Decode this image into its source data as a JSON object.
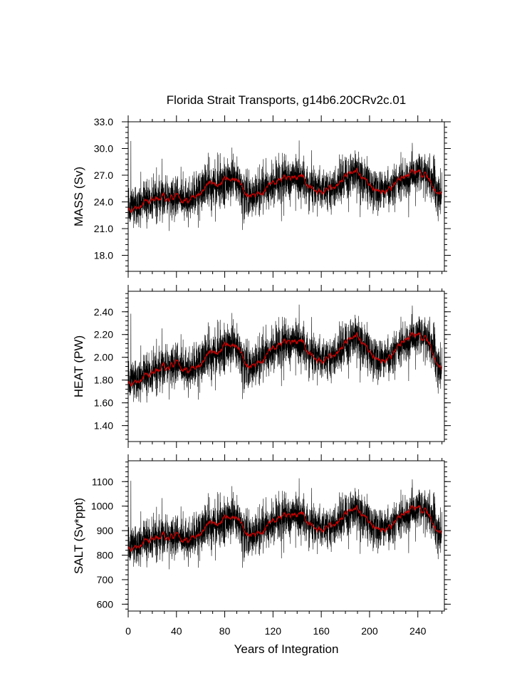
{
  "chart_data": {
    "type": "line",
    "title": "Florida Strait Transports, g14b6.20CRv2c.01",
    "xlabel": "Years of Integration",
    "xlim": [
      0,
      262
    ],
    "xticks": [
      0,
      40,
      80,
      120,
      160,
      200,
      240
    ],
    "xtick_labels": [
      "0",
      "40",
      "80",
      "120",
      "160",
      "200",
      "240"
    ],
    "series_colors": {
      "monthly": "#000000",
      "smoothed": "#cc0000"
    },
    "panels": [
      {
        "ylabel": "MASS (Sv)",
        "ylim": [
          16.2,
          33.0
        ],
        "yticks": [
          18.0,
          21.0,
          24.0,
          27.0,
          30.0,
          33.0
        ],
        "ytick_labels": [
          "18.0",
          "21.0",
          "24.0",
          "27.0",
          "30.0",
          "33.0"
        ],
        "minor_step": 0.6,
        "noise": 1.2,
        "trend_years": [
          0,
          10,
          20,
          30,
          40,
          50,
          60,
          70,
          80,
          87,
          95,
          100,
          110,
          120,
          130,
          140,
          150,
          160,
          170,
          180,
          190,
          200,
          210,
          220,
          230,
          240,
          250,
          260
        ],
        "trend_values": [
          23.2,
          23.8,
          24.2,
          24.3,
          24.6,
          24.0,
          25.2,
          25.9,
          26.2,
          26.7,
          25.5,
          24.5,
          25.2,
          26.0,
          26.5,
          26.9,
          25.9,
          25.2,
          25.8,
          26.8,
          27.3,
          25.8,
          25.2,
          25.9,
          26.8,
          27.4,
          26.6,
          24.5
        ]
      },
      {
        "ylabel": "HEAT (PW)",
        "ylim": [
          1.26,
          2.58
        ],
        "yticks": [
          1.4,
          1.6,
          1.8,
          2.0,
          2.2,
          2.4
        ],
        "ytick_labels": [
          "1.40",
          "1.60",
          "1.80",
          "2.00",
          "2.20",
          "2.40"
        ],
        "minor_step": 0.04,
        "noise": 0.095,
        "trend_years": [
          0,
          10,
          20,
          30,
          40,
          50,
          60,
          70,
          80,
          87,
          95,
          100,
          110,
          120,
          130,
          140,
          150,
          160,
          170,
          180,
          190,
          200,
          210,
          220,
          230,
          240,
          250,
          260
        ],
        "trend_values": [
          1.78,
          1.82,
          1.86,
          1.9,
          1.95,
          1.87,
          1.95,
          2.03,
          2.08,
          2.12,
          2.0,
          1.9,
          1.98,
          2.07,
          2.12,
          2.15,
          2.05,
          1.97,
          2.03,
          2.12,
          2.18,
          2.04,
          1.97,
          2.04,
          2.15,
          2.2,
          2.13,
          1.86
        ]
      },
      {
        "ylabel": "SALT (Sv*ppt)",
        "ylim": [
          572,
          1185
        ],
        "yticks": [
          600,
          700,
          800,
          900,
          1000,
          1100
        ],
        "ytick_labels": [
          "600",
          "700",
          "800",
          "900",
          "1000",
          "1100"
        ],
        "minor_step": 20,
        "noise": 43,
        "trend_years": [
          0,
          10,
          20,
          30,
          40,
          50,
          60,
          70,
          80,
          87,
          95,
          100,
          110,
          120,
          130,
          140,
          150,
          160,
          170,
          180,
          190,
          200,
          210,
          220,
          230,
          240,
          250,
          260
        ],
        "trend_values": [
          830,
          850,
          865,
          870,
          880,
          855,
          895,
          925,
          940,
          960,
          915,
          875,
          900,
          935,
          955,
          970,
          935,
          905,
          930,
          965,
          985,
          930,
          905,
          930,
          970,
          995,
          965,
          875
        ]
      }
    ]
  }
}
